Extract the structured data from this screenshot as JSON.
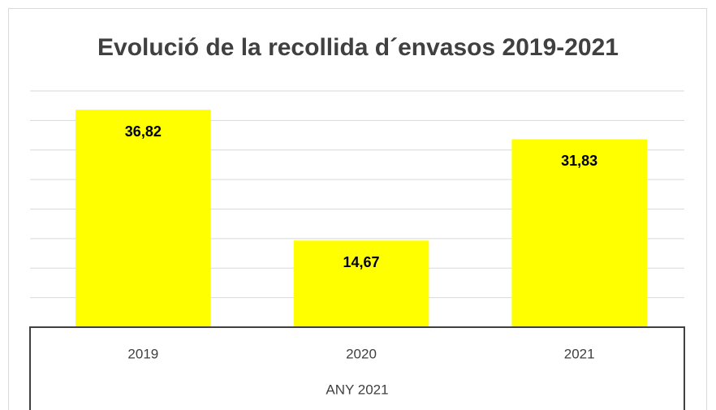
{
  "chart_data": {
    "type": "bar",
    "title": "Evolució de la recollida d´envasos 2019-2021",
    "categories": [
      "2019",
      "2020",
      "2021"
    ],
    "values": [
      36.82,
      14.67,
      31.83
    ],
    "value_labels": [
      "36,82",
      "14,67",
      "31,83"
    ],
    "color": "#ffff00",
    "xlabel": "ANY 2021",
    "ylim": [
      0,
      40
    ],
    "yticks": [
      0,
      5,
      10,
      15,
      20,
      25,
      30,
      35,
      40
    ],
    "grid": true
  }
}
